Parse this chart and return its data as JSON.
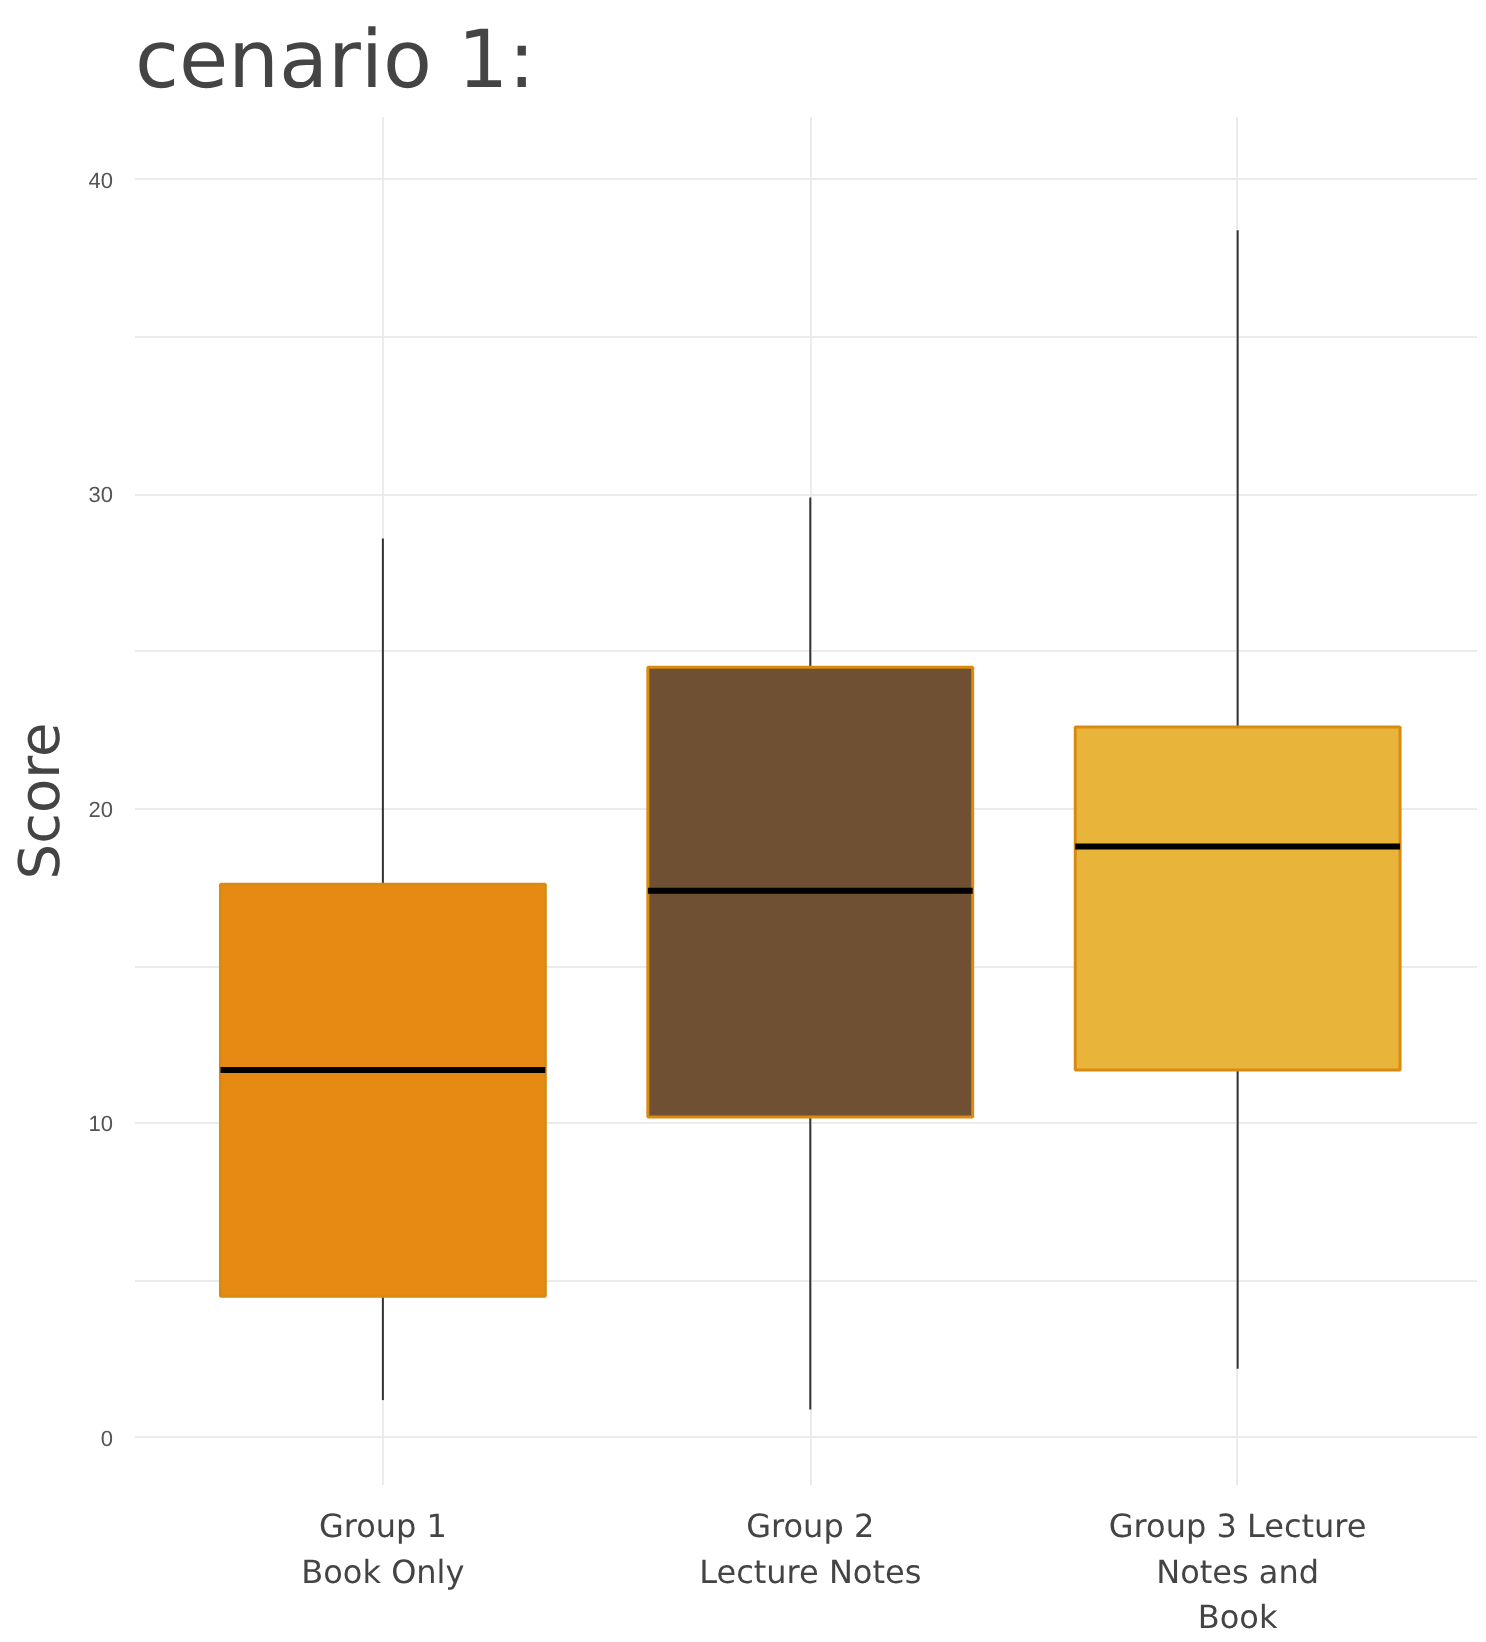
{
  "chart_data": {
    "type": "box",
    "title": "cenario 1:",
    "ylabel": "Score",
    "categories": [
      "Group 1\nBook Only",
      "Group 2\nLecture Notes",
      "Group 3 Lecture\nNotes and\nBook"
    ],
    "colors": [
      "#e68a14",
      "#6f5033",
      "#e8b43a"
    ],
    "boxes": [
      {
        "low": 1.2,
        "q1": 4.5,
        "median": 11.7,
        "q3": 17.6,
        "high": 28.6
      },
      {
        "low": 0.9,
        "q1": 10.2,
        "median": 17.4,
        "q3": 24.5,
        "high": 29.9
      },
      {
        "low": 2.2,
        "q1": 11.7,
        "median": 18.8,
        "q3": 22.6,
        "high": 38.4
      }
    ],
    "ylim": [
      -1.5,
      42
    ],
    "yticks": [
      0,
      {
        "value": 5,
        "label": null
      },
      10,
      {
        "value": 15,
        "label": null
      },
      20,
      {
        "value": 25,
        "label": null
      },
      30,
      {
        "value": 35,
        "label": null
      },
      40
    ],
    "grid": true
  }
}
